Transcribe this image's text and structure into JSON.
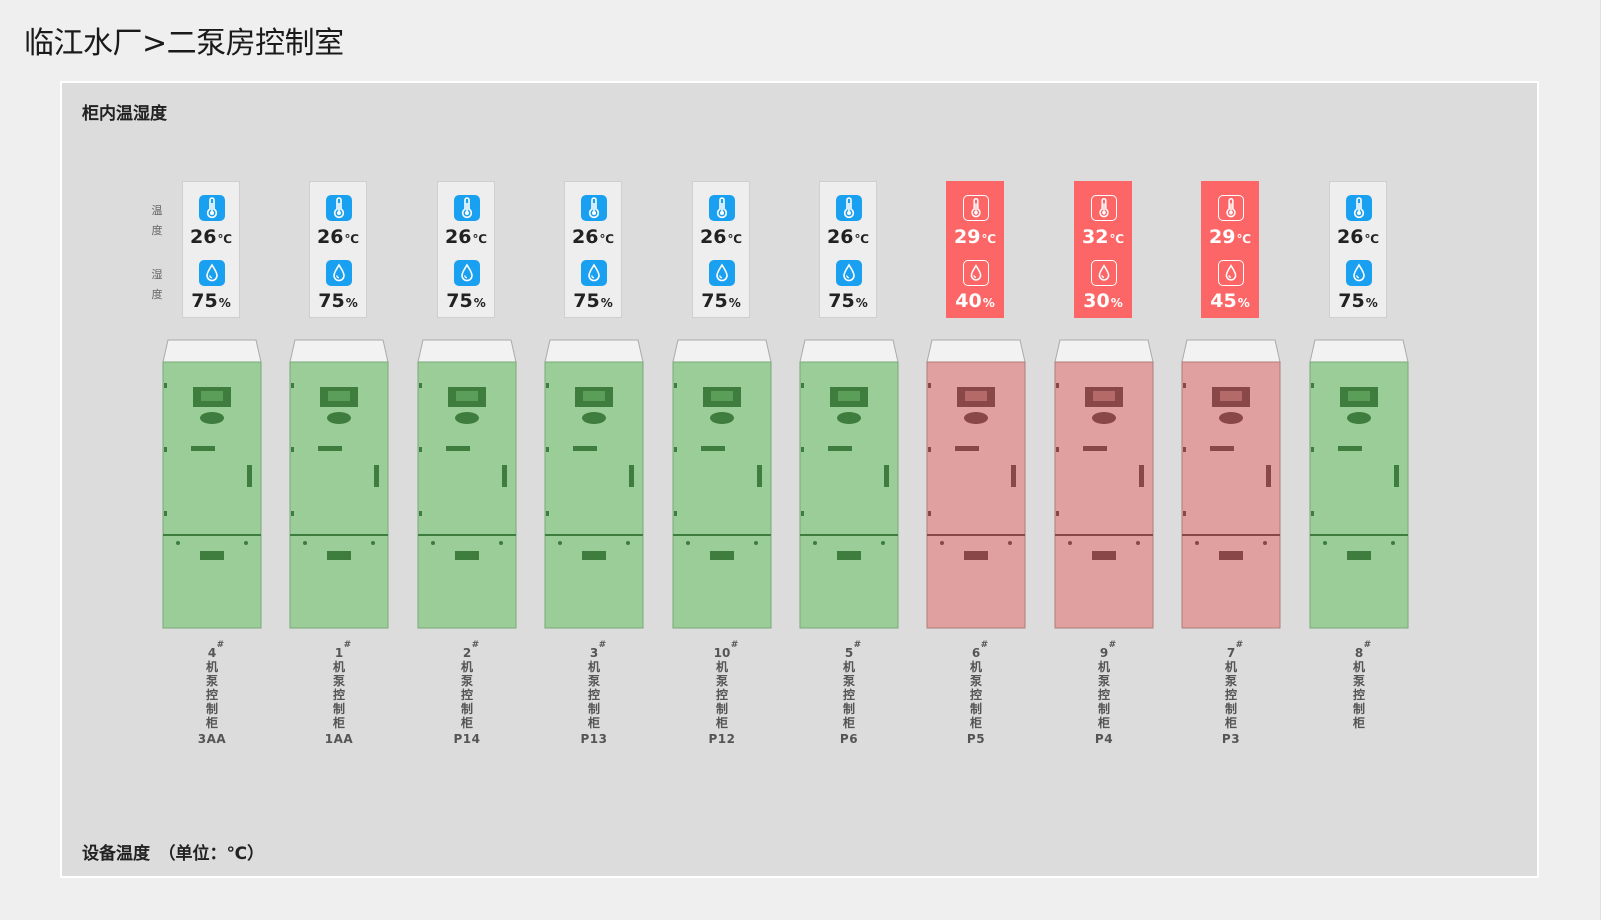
{
  "header": {
    "title": "临江水厂>二泵房控制室"
  },
  "panel": {
    "section_title": "柜内温湿度",
    "footer_note": "设备温度　（单位：℃）",
    "side_labels": {
      "temperature": [
        "温",
        "度"
      ],
      "humidity": [
        "湿",
        "度"
      ]
    }
  },
  "colors": {
    "normal_card": "#eeeeee",
    "alarm_card": "#fc6666",
    "icon_blue": "#1aa0f0",
    "normal_cabinet": "#9acd98",
    "alarm_cabinet": "#e0a09f"
  },
  "cabinets": [
    {
      "number": "4",
      "name": "机泵控制柜",
      "code": "3AA",
      "temp": "26",
      "humidity": "75",
      "status": "normal"
    },
    {
      "number": "1",
      "name": "机泵控制柜",
      "code": "1AA",
      "temp": "26",
      "humidity": "75",
      "status": "normal"
    },
    {
      "number": "2",
      "name": "机泵控制柜",
      "code": "P14",
      "temp": "26",
      "humidity": "75",
      "status": "normal"
    },
    {
      "number": "3",
      "name": "机泵控制柜",
      "code": "P13",
      "temp": "26",
      "humidity": "75",
      "status": "normal"
    },
    {
      "number": "10",
      "name": "机泵控制柜",
      "code": "P12",
      "temp": "26",
      "humidity": "75",
      "status": "normal"
    },
    {
      "number": "5",
      "name": "机泵控制柜",
      "code": "P6",
      "temp": "26",
      "humidity": "75",
      "status": "normal"
    },
    {
      "number": "6",
      "name": "机泵控制柜",
      "code": "P5",
      "temp": "29",
      "humidity": "40",
      "status": "alarm"
    },
    {
      "number": "9",
      "name": "机泵控制柜",
      "code": "P4",
      "temp": "32",
      "humidity": "30",
      "status": "alarm"
    },
    {
      "number": "7",
      "name": "机泵控制柜",
      "code": "P3",
      "temp": "29",
      "humidity": "45",
      "status": "alarm"
    },
    {
      "number": "8",
      "name": "机泵控制柜",
      "code": "",
      "temp": "26",
      "humidity": "75",
      "status": "normal"
    }
  ],
  "units": {
    "temp": "℃",
    "humidity": "%",
    "number_mark": "#"
  }
}
